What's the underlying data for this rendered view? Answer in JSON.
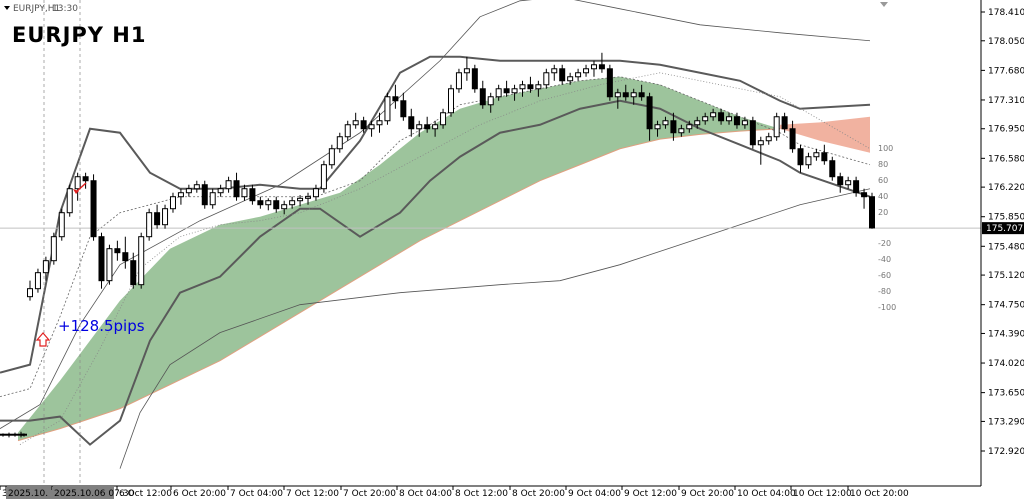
{
  "window": {
    "caption": "EURJPY,H1",
    "timer": "13:30"
  },
  "symbol_title": "EURJPY  H1",
  "profit_text": "+128.5pips",
  "colors": {
    "background": "#ffffff",
    "bull_candle": "#000000",
    "cloud_bull": "#9dc49c",
    "cloud_bear": "#f1b2a0",
    "bollinger": "#555555",
    "envelope": "#555555",
    "price_line": "#c0c0c0",
    "profit_text": "#0000e0",
    "arrow_up": "#e02020"
  },
  "price_label": "175.707",
  "oscillator_scale": [
    "100",
    "80",
    "60",
    "40",
    "20",
    "-20",
    "-40",
    "-60",
    "-80",
    "-100"
  ],
  "chart_data": {
    "type": "candlestick",
    "title": "EURJPY  H1",
    "ylim": [
      172.92,
      178.6
    ],
    "y_ticks": [
      "178.410",
      "178.050",
      "177.680",
      "177.310",
      "176.950",
      "176.580",
      "176.220",
      "175.850",
      "175.480",
      "175.120",
      "174.750",
      "174.390",
      "174.020",
      "173.650",
      "173.290",
      "172.920"
    ],
    "x_ticks": [
      "3",
      "2025.10.",
      "2025.10.06 07:30",
      "6 Oct 12:00",
      "6 Oct 20:00",
      "7 Oct 04:00",
      "7 Oct 12:00",
      "7 Oct 20:00",
      "8 Oct 04:00",
      "8 Oct 12:00",
      "8 Oct 20:00",
      "9 Oct 04:00",
      "9 Oct 12:00",
      "9 Oct 20:00",
      "10 Oct 04:00",
      "10 Oct 12:00",
      "10 Oct 20:00"
    ],
    "current_price": 175.707,
    "candles_ohlc": [
      [
        173.12,
        173.14,
        173.1,
        173.13
      ],
      [
        173.13,
        173.15,
        173.09,
        173.12
      ],
      [
        173.12,
        173.15,
        173.1,
        173.13
      ],
      [
        173.13,
        173.16,
        173.09,
        173.12
      ],
      [
        173.12,
        173.14,
        173.1,
        173.13
      ],
      [
        174.85,
        175.05,
        174.8,
        174.95
      ],
      [
        174.95,
        175.2,
        174.9,
        175.15
      ],
      [
        175.15,
        175.35,
        175.05,
        175.3
      ],
      [
        175.3,
        175.65,
        175.25,
        175.6
      ],
      [
        175.6,
        175.95,
        175.55,
        175.9
      ],
      [
        175.9,
        176.25,
        175.85,
        176.2
      ],
      [
        176.2,
        176.4,
        176.05,
        176.35
      ],
      [
        176.35,
        176.4,
        176.2,
        176.3
      ],
      [
        176.3,
        176.38,
        175.55,
        175.6
      ],
      [
        175.6,
        175.65,
        174.95,
        175.05
      ],
      [
        175.05,
        175.5,
        175.0,
        175.45
      ],
      [
        175.45,
        175.55,
        175.3,
        175.4
      ],
      [
        175.4,
        175.6,
        175.2,
        175.3
      ],
      [
        175.3,
        175.4,
        174.95,
        175.0
      ],
      [
        175.0,
        175.65,
        174.95,
        175.6
      ],
      [
        175.6,
        175.95,
        175.55,
        175.9
      ],
      [
        175.9,
        176.0,
        175.7,
        175.75
      ],
      [
        175.75,
        176.0,
        175.7,
        175.95
      ],
      [
        175.95,
        176.15,
        175.9,
        176.1
      ],
      [
        176.1,
        176.2,
        176.0,
        176.15
      ],
      [
        176.15,
        176.25,
        176.1,
        176.2
      ],
      [
        176.2,
        176.3,
        176.15,
        176.25
      ],
      [
        176.25,
        176.3,
        175.95,
        176.0
      ],
      [
        176.0,
        176.2,
        175.95,
        176.15
      ],
      [
        176.15,
        176.25,
        176.1,
        176.2
      ],
      [
        176.2,
        176.35,
        176.15,
        176.3
      ],
      [
        176.3,
        176.4,
        176.05,
        176.1
      ],
      [
        176.1,
        176.25,
        176.05,
        176.2
      ],
      [
        176.2,
        176.25,
        176.0,
        176.05
      ],
      [
        176.05,
        176.1,
        175.95,
        176.0
      ],
      [
        176.0,
        176.08,
        175.93,
        176.05
      ],
      [
        176.05,
        176.1,
        175.9,
        175.95
      ],
      [
        175.95,
        176.05,
        175.88,
        176.0
      ],
      [
        176.0,
        176.1,
        175.95,
        176.05
      ],
      [
        176.05,
        176.12,
        175.98,
        176.08
      ],
      [
        176.08,
        176.15,
        176.0,
        176.1
      ],
      [
        176.1,
        176.25,
        176.05,
        176.2
      ],
      [
        176.2,
        176.55,
        176.15,
        176.5
      ],
      [
        176.5,
        176.75,
        176.45,
        176.7
      ],
      [
        176.7,
        176.9,
        176.65,
        176.85
      ],
      [
        176.85,
        177.05,
        176.8,
        177.0
      ],
      [
        177.0,
        177.15,
        176.95,
        177.05
      ],
      [
        177.05,
        177.1,
        176.9,
        176.95
      ],
      [
        176.95,
        177.05,
        176.85,
        177.0
      ],
      [
        177.0,
        177.15,
        176.9,
        177.05
      ],
      [
        177.05,
        177.4,
        177.0,
        177.35
      ],
      [
        177.35,
        177.5,
        177.2,
        177.3
      ],
      [
        177.3,
        177.4,
        177.05,
        177.1
      ],
      [
        177.1,
        177.2,
        176.85,
        176.95
      ],
      [
        176.95,
        177.05,
        176.85,
        177.0
      ],
      [
        177.0,
        177.1,
        176.9,
        176.95
      ],
      [
        176.95,
        177.05,
        176.85,
        177.0
      ],
      [
        177.0,
        177.2,
        176.95,
        177.15
      ],
      [
        177.15,
        177.5,
        177.1,
        177.45
      ],
      [
        177.45,
        177.7,
        177.4,
        177.65
      ],
      [
        177.65,
        177.85,
        177.55,
        177.7
      ],
      [
        177.7,
        177.75,
        177.4,
        177.45
      ],
      [
        177.45,
        177.55,
        177.2,
        177.25
      ],
      [
        177.25,
        177.4,
        177.15,
        177.35
      ],
      [
        177.35,
        177.5,
        177.3,
        177.45
      ],
      [
        177.45,
        177.55,
        177.35,
        177.4
      ],
      [
        177.4,
        177.5,
        177.3,
        177.45
      ],
      [
        177.45,
        177.55,
        177.35,
        177.5
      ],
      [
        177.5,
        177.6,
        177.4,
        177.45
      ],
      [
        177.45,
        177.55,
        177.35,
        177.5
      ],
      [
        177.5,
        177.7,
        177.45,
        177.65
      ],
      [
        177.65,
        177.75,
        177.55,
        177.7
      ],
      [
        177.7,
        177.75,
        177.5,
        177.55
      ],
      [
        177.55,
        177.65,
        177.5,
        177.6
      ],
      [
        177.6,
        177.7,
        177.55,
        177.65
      ],
      [
        177.65,
        177.75,
        177.6,
        177.7
      ],
      [
        177.7,
        177.8,
        177.6,
        177.75
      ],
      [
        177.75,
        177.9,
        177.65,
        177.7
      ],
      [
        177.7,
        177.75,
        177.3,
        177.35
      ],
      [
        177.35,
        177.45,
        177.2,
        177.4
      ],
      [
        177.4,
        177.5,
        177.3,
        177.35
      ],
      [
        177.35,
        177.45,
        177.25,
        177.4
      ],
      [
        177.4,
        177.5,
        177.3,
        177.35
      ],
      [
        177.35,
        177.4,
        176.8,
        176.95
      ],
      [
        176.95,
        177.05,
        176.85,
        177.0
      ],
      [
        177.0,
        177.1,
        176.95,
        177.05
      ],
      [
        177.05,
        177.15,
        176.8,
        176.9
      ],
      [
        176.9,
        177.0,
        176.85,
        176.95
      ],
      [
        176.95,
        177.05,
        176.9,
        177.0
      ],
      [
        177.0,
        177.1,
        176.95,
        177.05
      ],
      [
        177.05,
        177.15,
        177.0,
        177.1
      ],
      [
        177.1,
        177.2,
        177.05,
        177.15
      ],
      [
        177.15,
        177.2,
        177.0,
        177.05
      ],
      [
        177.05,
        177.15,
        177.0,
        177.1
      ],
      [
        177.1,
        177.15,
        176.95,
        177.0
      ],
      [
        177.0,
        177.1,
        176.95,
        177.05
      ],
      [
        177.05,
        177.1,
        176.7,
        176.75
      ],
      [
        176.75,
        176.85,
        176.5,
        176.8
      ],
      [
        176.8,
        176.9,
        176.75,
        176.85
      ],
      [
        176.85,
        177.15,
        176.8,
        177.1
      ],
      [
        177.1,
        177.15,
        176.9,
        176.95
      ],
      [
        176.95,
        177.05,
        176.65,
        176.7
      ],
      [
        176.7,
        176.75,
        176.4,
        176.5
      ],
      [
        176.5,
        176.65,
        176.45,
        176.6
      ],
      [
        176.6,
        176.7,
        176.55,
        176.65
      ],
      [
        176.65,
        176.75,
        176.5,
        176.55
      ],
      [
        176.55,
        176.6,
        176.3,
        176.35
      ],
      [
        176.35,
        176.4,
        176.15,
        176.25
      ],
      [
        176.25,
        176.35,
        176.2,
        176.3
      ],
      [
        176.3,
        176.35,
        176.1,
        176.15
      ],
      [
        176.15,
        176.2,
        175.95,
        176.1
      ],
      [
        176.1,
        176.15,
        175.7,
        175.71
      ]
    ]
  }
}
